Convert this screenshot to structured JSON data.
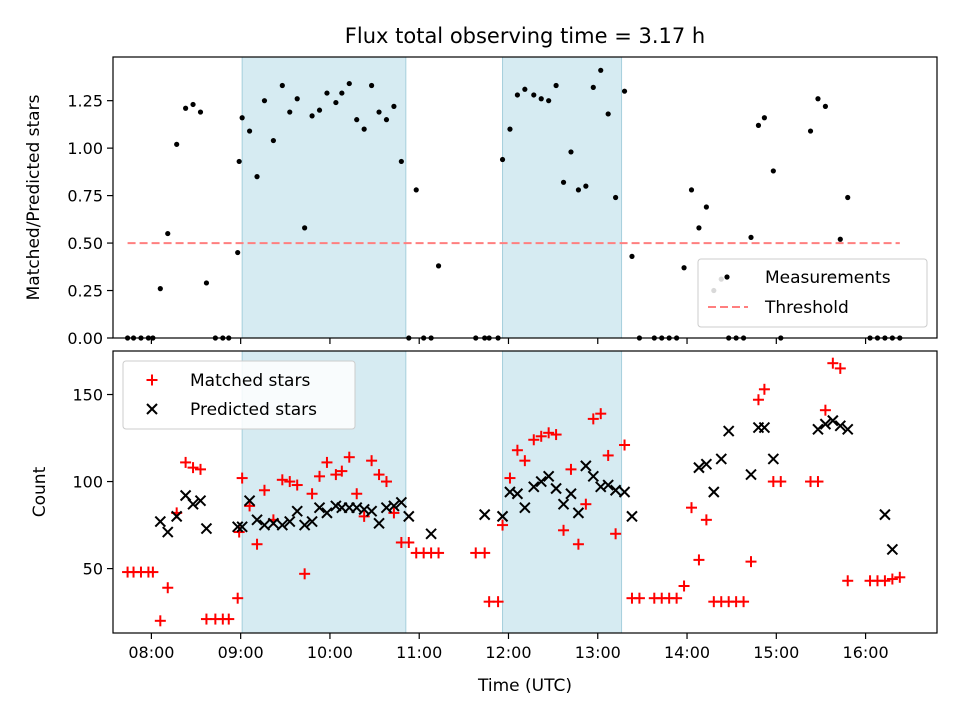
{
  "title": "Flux total observing time = 3.17 h",
  "colors": {
    "measurement": "#000000",
    "threshold": "#ff7f7f",
    "matched": "#ff0000",
    "predicted": "#000000",
    "band_fill": "#add8e6"
  },
  "chart_data": [
    {
      "type": "scatter",
      "ylabel": "Matched/Predicted stars",
      "ylim": [
        0,
        1.48
      ],
      "xlim_hours": [
        7.57,
        16.8
      ],
      "yticks": [
        0.0,
        0.25,
        0.5,
        0.75,
        1.0,
        1.25
      ],
      "ytick_labels": [
        "0.00",
        "0.25",
        "0.50",
        "0.75",
        "1.00",
        "1.25"
      ],
      "shaded_intervals": [
        [
          "09:01",
          "10:51"
        ],
        [
          "11:56",
          "13:16"
        ]
      ],
      "legend_position": "lower-right",
      "legend": [
        {
          "label": "Measurements",
          "marker": "dot"
        },
        {
          "label": "Threshold",
          "marker": "dashed-line"
        }
      ],
      "threshold": {
        "value": 0.5,
        "x_range": [
          "07:44",
          "16:23"
        ]
      },
      "series": [
        {
          "name": "Measurements",
          "x": [
            "07:44",
            "07:48",
            "07:53",
            "07:58",
            "08:01",
            "08:06",
            "08:11",
            "08:17",
            "08:23",
            "08:28",
            "08:33",
            "08:37",
            "08:43",
            "08:48",
            "08:52",
            "08:58",
            "08:59",
            "09:01",
            "09:06",
            "09:11",
            "09:16",
            "09:22",
            "09:28",
            "09:33",
            "09:38",
            "09:43",
            "09:48",
            "09:53",
            "09:58",
            "10:04",
            "10:08",
            "10:13",
            "10:18",
            "10:23",
            "10:28",
            "10:33",
            "10:38",
            "10:43",
            "10:48",
            "10:53",
            "10:58",
            "11:03",
            "11:08",
            "11:13",
            "11:38",
            "11:44",
            "11:47",
            "11:53",
            "11:56",
            "12:01",
            "12:06",
            "12:11",
            "12:17",
            "12:22",
            "12:27",
            "12:32",
            "12:37",
            "12:42",
            "12:47",
            "12:52",
            "12:57",
            "13:02",
            "13:07",
            "13:12",
            "13:18",
            "13:23",
            "13:28",
            "13:38",
            "13:43",
            "13:48",
            "13:53",
            "13:58",
            "14:03",
            "14:08",
            "14:13",
            "14:18",
            "14:23",
            "14:28",
            "14:33",
            "14:38",
            "14:43",
            "14:48",
            "14:52",
            "14:58",
            "15:03",
            "15:23",
            "15:28",
            "15:33",
            "15:38",
            "15:43",
            "15:48",
            "16:03",
            "16:08",
            "16:13",
            "16:18",
            "16:23"
          ],
          "y": [
            0,
            0,
            0,
            0,
            0,
            0.26,
            0.55,
            1.02,
            1.21,
            1.23,
            1.19,
            0.29,
            0,
            0,
            0,
            0.45,
            0.93,
            1.16,
            1.09,
            0.85,
            1.25,
            1.04,
            1.33,
            1.19,
            1.26,
            0.58,
            1.17,
            1.2,
            1.29,
            1.24,
            1.29,
            1.34,
            1.15,
            1.1,
            1.33,
            1.19,
            1.15,
            1.22,
            0.93,
            0,
            0.78,
            0,
            0,
            0.38,
            0,
            0,
            0,
            0,
            0.94,
            1.1,
            1.28,
            1.31,
            1.28,
            1.26,
            1.25,
            1.33,
            0.82,
            0.98,
            0.78,
            0.8,
            1.32,
            1.41,
            1.18,
            0.74,
            1.3,
            0.43,
            0,
            0,
            0,
            0,
            0,
            0.37,
            0.78,
            0.58,
            0.69,
            0.25,
            0.31,
            0,
            0,
            0,
            0.53,
            1.12,
            1.16,
            0.88,
            0,
            1.09,
            1.26,
            1.22,
            0.33,
            0.52,
            0.74,
            0,
            0,
            0,
            0,
            0
          ]
        }
      ]
    },
    {
      "type": "scatter",
      "ylabel": "Count",
      "xlabel": "Time (UTC)",
      "ylim": [
        13,
        175
      ],
      "xlim_hours": [
        7.57,
        16.8
      ],
      "yticks": [
        50,
        100,
        150
      ],
      "ytick_labels": [
        "50",
        "100",
        "150"
      ],
      "xtick_labels": [
        "08:00",
        "09:00",
        "10:00",
        "11:00",
        "12:00",
        "13:00",
        "14:00",
        "15:00",
        "16:00"
      ],
      "shaded_intervals": [
        [
          "09:01",
          "10:51"
        ],
        [
          "11:56",
          "13:16"
        ]
      ],
      "legend_position": "upper-left",
      "legend": [
        {
          "label": "Matched stars",
          "marker": "plus"
        },
        {
          "label": "Predicted stars",
          "marker": "x"
        }
      ],
      "series": [
        {
          "name": "Matched stars",
          "marker": "plus",
          "x": [
            "07:44",
            "07:48",
            "07:53",
            "07:58",
            "08:01",
            "08:06",
            "08:11",
            "08:17",
            "08:23",
            "08:28",
            "08:33",
            "08:37",
            "08:43",
            "08:48",
            "08:52",
            "08:58",
            "08:59",
            "09:01",
            "09:06",
            "09:11",
            "09:16",
            "09:22",
            "09:28",
            "09:33",
            "09:38",
            "09:43",
            "09:48",
            "09:53",
            "09:58",
            "10:04",
            "10:08",
            "10:13",
            "10:18",
            "10:23",
            "10:28",
            "10:33",
            "10:38",
            "10:43",
            "10:48",
            "10:53",
            "10:58",
            "11:03",
            "11:08",
            "11:13",
            "11:38",
            "11:44",
            "11:47",
            "11:53",
            "11:56",
            "12:01",
            "12:06",
            "12:11",
            "12:17",
            "12:22",
            "12:27",
            "12:32",
            "12:37",
            "12:42",
            "12:47",
            "12:52",
            "12:57",
            "13:02",
            "13:07",
            "13:12",
            "13:18",
            "13:23",
            "13:28",
            "13:38",
            "13:43",
            "13:48",
            "13:53",
            "13:58",
            "14:03",
            "14:08",
            "14:13",
            "14:18",
            "14:23",
            "14:28",
            "14:33",
            "14:38",
            "14:43",
            "14:48",
            "14:52",
            "14:58",
            "15:03",
            "15:23",
            "15:28",
            "15:33",
            "15:38",
            "15:43",
            "15:48",
            "16:03",
            "16:08",
            "16:13",
            "16:18",
            "16:23"
          ],
          "y": [
            48,
            48,
            48,
            48,
            48,
            20,
            39,
            82,
            111,
            108,
            107,
            21,
            21,
            21,
            21,
            33,
            71,
            102,
            86,
            64,
            95,
            78,
            101,
            100,
            98,
            47,
            93,
            103,
            111,
            104,
            106,
            114,
            93,
            80,
            112,
            104,
            100,
            82,
            65,
            65,
            59,
            59,
            59,
            59,
            59,
            59,
            31,
            31,
            75,
            102,
            118,
            112,
            124,
            126,
            128,
            127,
            72,
            107,
            64,
            87,
            136,
            139,
            115,
            70,
            121,
            33,
            33,
            33,
            33,
            33,
            33,
            40,
            85,
            55,
            78,
            31,
            31,
            31,
            31,
            31,
            54,
            147,
            153,
            100,
            100,
            100,
            100,
            141,
            168,
            165,
            43,
            43,
            43,
            43,
            44,
            45
          ]
        },
        {
          "name": "Predicted stars",
          "marker": "x",
          "x": [
            "08:06",
            "08:11",
            "08:17",
            "08:23",
            "08:28",
            "08:33",
            "08:37",
            "08:58",
            "09:01",
            "09:06",
            "09:11",
            "09:16",
            "09:22",
            "09:28",
            "09:33",
            "09:38",
            "09:43",
            "09:48",
            "09:53",
            "09:58",
            "10:04",
            "10:08",
            "10:13",
            "10:18",
            "10:23",
            "10:28",
            "10:33",
            "10:38",
            "10:43",
            "10:48",
            "10:53",
            "11:08",
            "11:44",
            "11:56",
            "12:01",
            "12:06",
            "12:11",
            "12:17",
            "12:22",
            "12:27",
            "12:32",
            "12:37",
            "12:42",
            "12:47",
            "12:52",
            "12:57",
            "13:02",
            "13:07",
            "13:12",
            "13:18",
            "13:23",
            "14:08",
            "14:13",
            "14:18",
            "14:23",
            "14:28",
            "14:43",
            "14:48",
            "14:52",
            "14:58",
            "15:28",
            "15:33",
            "15:38",
            "15:43",
            "15:48",
            "16:13",
            "16:18"
          ],
          "y": [
            77,
            71,
            80,
            92,
            87,
            89,
            73,
            74,
            74,
            89,
            78,
            75,
            76,
            75,
            77,
            83,
            75,
            77,
            85,
            82,
            86,
            85,
            85,
            85,
            84,
            83,
            76,
            85,
            86,
            88,
            80,
            70,
            81,
            80,
            94,
            93,
            85,
            97,
            100,
            103,
            96,
            87,
            93,
            82,
            109,
            103,
            97,
            98,
            95,
            94,
            80,
            108,
            110,
            94,
            113,
            129,
            104,
            131,
            131,
            113,
            130,
            133,
            135,
            132,
            130,
            81,
            61
          ]
        }
      ]
    }
  ]
}
